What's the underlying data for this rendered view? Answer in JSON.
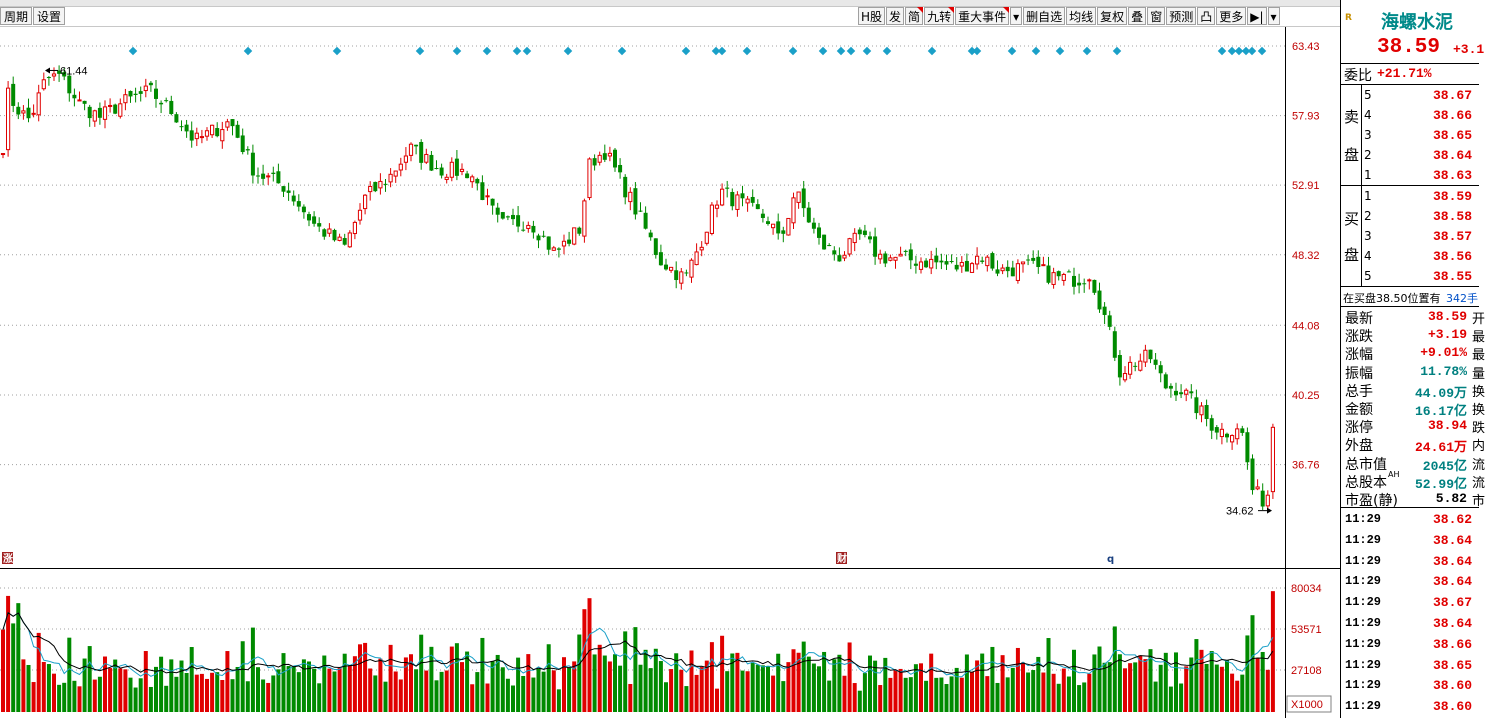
{
  "toolbar": {
    "left_buttons": [
      "周期",
      "设置"
    ],
    "right_buttons": [
      {
        "label": "H股",
        "flag": false
      },
      {
        "label": "发",
        "flag": false
      },
      {
        "label": "简",
        "flag": true
      },
      {
        "label": "九转",
        "flag": true
      },
      {
        "label": "重大事件",
        "flag": true
      },
      {
        "label": "▾",
        "flag": false
      },
      {
        "label": "删自选",
        "flag": false
      },
      {
        "label": "均线",
        "flag": false
      },
      {
        "label": "复权",
        "flag": false
      },
      {
        "label": "叠",
        "flag": false
      },
      {
        "label": "窗",
        "flag": false
      },
      {
        "label": "预测",
        "flag": false
      },
      {
        "label": "凸",
        "flag": false
      },
      {
        "label": "更多",
        "flag": false
      },
      {
        "label": "▶|",
        "flag": false
      },
      {
        "label": "▾",
        "flag": false
      }
    ]
  },
  "colors": {
    "up": "#e00000",
    "down": "#008a00",
    "marker": "#1aa0c8",
    "grid": "#a0a0a0"
  },
  "chart_data": {
    "type": "candlestick",
    "price_axis": {
      "labels": [
        "63.43",
        "57.93",
        "52.91",
        "48.32",
        "44.08",
        "40.25",
        "36.76"
      ],
      "values": [
        63.43,
        57.93,
        52.91,
        48.32,
        44.08,
        40.25,
        36.76
      ],
      "log_scale": true
    },
    "annotations": {
      "high": "61.44",
      "low": "34.62",
      "markers_bottom": [
        "涨",
        "财",
        "q"
      ]
    },
    "volume_axis": {
      "labels": [
        "80034",
        "53571",
        "27108"
      ],
      "values": [
        80034,
        53571,
        27108
      ],
      "unit_label": "X1000"
    },
    "last_close": 38.59
  },
  "stock": {
    "name": "海螺水泥",
    "badge": "R",
    "price": "38.59",
    "change_partial": "+3.1",
    "weibi_label": "委比",
    "weibi": "+21.71%",
    "sell_label_top": "卖",
    "sell_label_bottom": "盘",
    "buy_label_top": "买",
    "buy_label_bottom": "盘",
    "sell": [
      {
        "lvl": "5",
        "price": "38.67"
      },
      {
        "lvl": "4",
        "price": "38.66"
      },
      {
        "lvl": "3",
        "price": "38.65"
      },
      {
        "lvl": "2",
        "price": "38.64"
      },
      {
        "lvl": "1",
        "price": "38.63"
      }
    ],
    "buy": [
      {
        "lvl": "1",
        "price": "38.59"
      },
      {
        "lvl": "2",
        "price": "38.58"
      },
      {
        "lvl": "3",
        "price": "38.57"
      },
      {
        "lvl": "4",
        "price": "38.56"
      },
      {
        "lvl": "5",
        "price": "38.55"
      }
    ],
    "notice": "在买盘38.50位置有",
    "notice_qty": "342手",
    "stats": [
      {
        "label": "最新",
        "value": "38.59",
        "suffix": "开",
        "color": "red"
      },
      {
        "label": "涨跌",
        "value": "+3.19",
        "suffix": "最",
        "color": "red"
      },
      {
        "label": "涨幅",
        "value": "+9.01%",
        "suffix": "最",
        "color": "red"
      },
      {
        "label": "振幅",
        "value": "11.78%",
        "suffix": "量",
        "color": "teal"
      },
      {
        "label": "总手",
        "value": "44.09万",
        "suffix": "换",
        "color": "teal"
      },
      {
        "label": "金额",
        "value": "16.17亿",
        "suffix": "换",
        "color": "teal"
      },
      {
        "label": "涨停",
        "value": "38.94",
        "suffix": "跌",
        "color": "red"
      },
      {
        "label": "外盘",
        "value": "24.61万",
        "suffix": "内",
        "color": "red"
      },
      {
        "label": "总市值",
        "value": "2045亿",
        "suffix": "流",
        "color": "teal"
      },
      {
        "label": "总股本",
        "value": "52.99亿",
        "suffix": "流",
        "color": "teal",
        "sup": "AH"
      },
      {
        "label": "市盈(静)",
        "value": "5.82",
        "suffix": "市",
        "color": "black"
      }
    ],
    "ticks": [
      {
        "time": "11:29",
        "price": "38.62"
      },
      {
        "time": "11:29",
        "price": "38.64"
      },
      {
        "time": "11:29",
        "price": "38.64"
      },
      {
        "time": "11:29",
        "price": "38.64"
      },
      {
        "time": "11:29",
        "price": "38.67"
      },
      {
        "time": "11:29",
        "price": "38.64"
      },
      {
        "time": "11:29",
        "price": "38.66"
      },
      {
        "time": "11:29",
        "price": "38.65"
      },
      {
        "time": "11:29",
        "price": "38.60"
      },
      {
        "time": "11:29",
        "price": "38.60"
      }
    ]
  }
}
